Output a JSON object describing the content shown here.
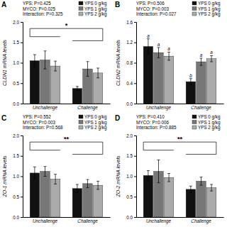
{
  "chart_data": [
    {
      "type": "bar",
      "title": "A",
      "subtitle": [
        "YPS: P=0.425",
        "MYCO: P=0.025",
        "Interaction: P=0.325"
      ],
      "y_label": "CLDN1 mRNA levels",
      "categories": [
        "Unchallenge",
        "Challenge"
      ],
      "series": [
        {
          "name": "YPS 0 g/kg",
          "color": "#111111",
          "values": [
            1.05,
            0.37
          ],
          "errors": [
            0.15,
            0.05
          ]
        },
        {
          "name": "YPS 1 g/kg",
          "color": "#777777",
          "values": [
            1.07,
            0.85
          ],
          "errors": [
            0.22,
            0.18
          ]
        },
        {
          "name": "YPS 2 g/kg",
          "color": "#aaaaaa",
          "values": [
            0.92,
            0.75
          ],
          "errors": [
            0.12,
            0.12
          ]
        }
      ],
      "ylim": [
        0.0,
        2.0
      ],
      "yticks": [
        {
          "value": 0.0,
          "label": "0.0"
        },
        0.5,
        {
          "value": 1.0,
          "label": "1.0"
        },
        1.5,
        {
          "value": 2.0,
          "label": "2.0"
        }
      ],
      "annotations": [
        "*"
      ],
      "legend": "upper right"
    },
    {
      "type": "bar",
      "title": "B",
      "subtitle": [
        "YPS: P=0.506",
        "MYCO: P=0.003",
        "Interaction: P=0.027"
      ],
      "y_label": "CLDN2 mRNA levels",
      "categories": [
        "Unchallenge",
        "Challenge"
      ],
      "series": [
        {
          "name": "YPS 0 g/kg",
          "color": "#111111",
          "values": [
            1.12,
            0.43
          ],
          "errors": [
            0.15,
            0.06
          ],
          "labels": [
            "a",
            "b"
          ]
        },
        {
          "name": "YPS 1 g/kg",
          "color": "#777777",
          "values": [
            1.0,
            0.82
          ],
          "errors": [
            0.1,
            0.07
          ],
          "labels": [
            "a",
            "a"
          ]
        },
        {
          "name": "YPS 2 g/kg",
          "color": "#aaaaaa",
          "values": [
            0.93,
            0.88
          ],
          "errors": [
            0.08,
            0.06
          ],
          "labels": [
            "a",
            "a"
          ]
        }
      ],
      "ylim": [
        0.0,
        1.6
      ],
      "yticks": [
        {
          "value": 0.0,
          "label": "0.0"
        },
        0.4,
        0.8,
        1.2,
        1.6
      ],
      "legend": "upper right"
    },
    {
      "type": "bar",
      "title": "C",
      "subtitle": [
        "YPS: P=0.552",
        "MYCO: P=0.003",
        "Interaction: P=0.568"
      ],
      "y_label": "ZO-1 mRNA levels",
      "categories": [
        "Unchallenge",
        "Challenge"
      ],
      "series": [
        {
          "name": "YPS 0 g/kg",
          "color": "#111111",
          "values": [
            1.08,
            0.7
          ],
          "errors": [
            0.15,
            0.1
          ]
        },
        {
          "name": "YPS 1 g/kg",
          "color": "#777777",
          "values": [
            1.12,
            0.82
          ],
          "errors": [
            0.12,
            0.1
          ]
        },
        {
          "name": "YPS 2 g/kg",
          "color": "#aaaaaa",
          "values": [
            0.93,
            0.78
          ],
          "errors": [
            0.12,
            0.1
          ]
        }
      ],
      "ylim": [
        0.0,
        2.0
      ],
      "yticks": [
        {
          "value": 0.0,
          "label": "0.0"
        },
        0.5,
        {
          "value": 1.0,
          "label": "1.0"
        },
        1.5,
        {
          "value": 2.0,
          "label": "2.0"
        }
      ],
      "annotations": [
        "**"
      ],
      "legend": "upper right"
    },
    {
      "type": "bar",
      "title": "D",
      "subtitle": [
        "YPS: P=0.410",
        "MYCO: P=0.006",
        "Interaction: P=0.885"
      ],
      "y_label": "ZO-2 mRNA levels",
      "categories": [
        "Unchallenge",
        "Challenge"
      ],
      "series": [
        {
          "name": "YPS 0 g/kg",
          "color": "#111111",
          "values": [
            1.02,
            0.68
          ],
          "errors": [
            0.12,
            0.08
          ]
        },
        {
          "name": "YPS 1 g/kg",
          "color": "#777777",
          "values": [
            1.12,
            0.88
          ],
          "errors": [
            0.28,
            0.1
          ]
        },
        {
          "name": "YPS 2 g/kg",
          "color": "#aaaaaa",
          "values": [
            0.97,
            0.72
          ],
          "errors": [
            0.1,
            0.08
          ]
        }
      ],
      "ylim": [
        0.0,
        2.0
      ],
      "yticks": [
        {
          "value": 0.0,
          "label": "0.0"
        },
        0.5,
        {
          "value": 1.0,
          "label": "1.0"
        },
        1.5,
        {
          "value": 2.0,
          "label": "2.0"
        }
      ],
      "annotations": [
        "**"
      ],
      "legend": "upper right"
    }
  ]
}
